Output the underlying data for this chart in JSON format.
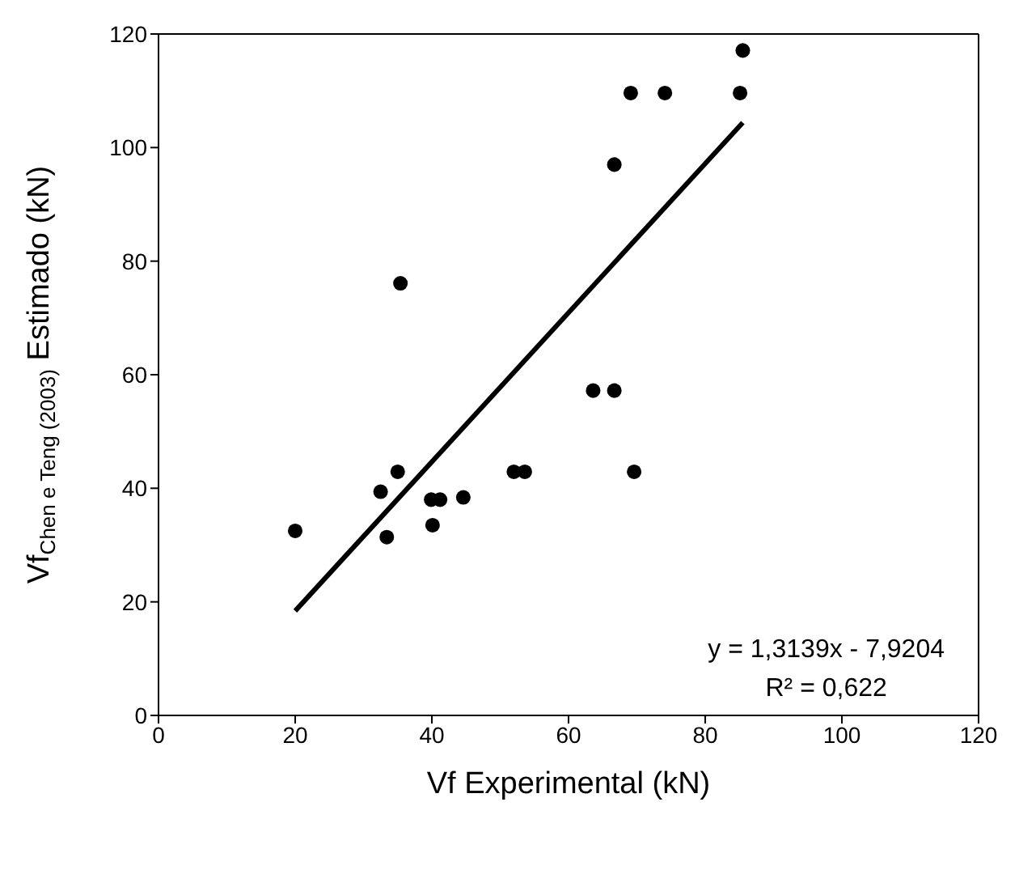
{
  "chart_data": {
    "type": "scatter",
    "xlabel": "Vf Experimental  (kN)",
    "ylabel": "Vf$_{Chen e Teng (2003)}$ Estimado (kN)",
    "annotations": [
      "y = 1,3139x - 7,9204",
      "R² = 0,622"
    ],
    "series": [
      {
        "color": "#000000",
        "marker": "circle",
        "x": [
          20.0,
          32.5,
          35.0,
          33.4,
          39.9,
          41.2,
          40.1,
          44.6,
          52.0,
          53.6,
          69.6,
          85.5,
          69.1,
          74.1,
          85.1,
          66.7,
          63.6,
          66.7,
          35.4
        ],
        "values": [
          32.5,
          39.4,
          42.9,
          31.4,
          38.0,
          38.0,
          33.5,
          38.4,
          42.9,
          42.9,
          42.9,
          117.1,
          109.6,
          109.6,
          109.6,
          97.0,
          57.2,
          57.2,
          76.1
        ]
      },
      {
        "type": "line",
        "color": "#000000",
        "x": [
          20.0,
          85.5
        ],
        "values": [
          18.4,
          104.4
        ]
      }
    ],
    "xlim": [
      0,
      120
    ],
    "xticks": [
      0,
      20,
      40,
      60,
      80,
      100,
      120
    ],
    "ylim": [
      0,
      120
    ],
    "yticks": [
      0,
      20,
      40,
      60,
      80,
      100,
      120
    ],
    "grid": false
  }
}
